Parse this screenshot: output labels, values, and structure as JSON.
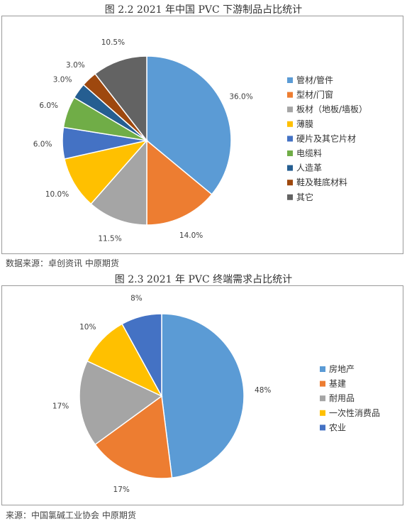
{
  "figure1": {
    "title": "图 2.2 2021 年中国 PVC 下游制品占比统计",
    "source": "数据来源：卓创资讯 中原期货"
  },
  "figure2": {
    "title": "图 2.3 2021 年 PVC 终端需求占比统计",
    "source": "来源：中国氯碱工业协会 中原期货"
  },
  "chart_data": [
    {
      "type": "pie",
      "title": "图 2.2 2021 年中国 PVC 下游制品占比统计",
      "legend_position": "right",
      "start": "12 o'clock, clockwise",
      "categories": [
        "管材/管件",
        "型材/门窗",
        "板材（地板/墙板）",
        "薄膜",
        "硬片及其它片材",
        "电缆料",
        "人造革",
        "鞋及鞋底材料",
        "其它"
      ],
      "values": [
        36.0,
        14.0,
        11.5,
        10.0,
        6.0,
        6.0,
        3.0,
        3.0,
        10.5
      ],
      "value_labels": [
        "36.0%",
        "14.0%",
        "11.5%",
        "10.0%",
        "6.0%",
        "6.0%",
        "3.0%",
        "3.0%",
        "10.5%"
      ],
      "colors": [
        "#5b9bd5",
        "#ed7d31",
        "#a5a5a5",
        "#ffc000",
        "#4472c4",
        "#70ad47",
        "#255e91",
        "#9e480e",
        "#636363"
      ]
    },
    {
      "type": "pie",
      "title": "图 2.3 2021 年 PVC 终端需求占比统计",
      "legend_position": "right",
      "start": "12 o'clock, clockwise",
      "categories": [
        "房地产",
        "基建",
        "耐用品",
        "一次性消费品",
        "农业"
      ],
      "values": [
        48,
        17,
        17,
        10,
        8
      ],
      "value_labels": [
        "48%",
        "17%",
        "17%",
        "10%",
        "8%"
      ],
      "colors": [
        "#5b9bd5",
        "#ed7d31",
        "#a5a5a5",
        "#ffc000",
        "#4472c4"
      ]
    }
  ]
}
